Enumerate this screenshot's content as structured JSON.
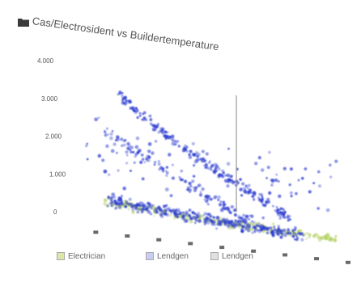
{
  "panel": {
    "title": "Cas/Electrosident vs Buildertemperature",
    "icon": "folder-icon"
  },
  "chart_data": {
    "type": "scatter",
    "title": "Cas/Electrosident vs Buildertemperature",
    "xlabel": "",
    "ylabel": "",
    "y_ticks": [
      "4.000",
      "3.000",
      "2.000",
      "1.000",
      "0"
    ],
    "ylim": [
      0,
      4000
    ],
    "xlim": [
      -3,
      9
    ],
    "grid": false,
    "legend_position": "bottom",
    "series": [
      {
        "name": "Electrician",
        "color": "#b7d36a",
        "clusters": [
          {
            "x_range": [
              -1.5,
              8.5
            ],
            "y_start": 350,
            "y_end": 80,
            "spread": 160,
            "n": 260
          }
        ]
      },
      {
        "name": "Lendgen",
        "color": "#2b3bd0",
        "clusters": [
          {
            "x_range": [
              -1.0,
              6.5
            ],
            "y_start": 3200,
            "y_end": 500,
            "spread": 180,
            "n": 220
          },
          {
            "x_range": [
              -2.0,
              5.0
            ],
            "y_start": 2400,
            "y_end": 250,
            "spread": 240,
            "n": 120
          },
          {
            "x_range": [
              -1.5,
              7.0
            ],
            "y_start": 400,
            "y_end": 100,
            "spread": 220,
            "n": 320
          },
          {
            "x_range": [
              -2.5,
              8.5
            ],
            "y_start": 1500,
            "y_end": 1300,
            "spread": 1200,
            "n": 80
          }
        ]
      },
      {
        "name": "Lendgen",
        "color": "#9a9a9a",
        "clusters": []
      }
    ]
  }
}
